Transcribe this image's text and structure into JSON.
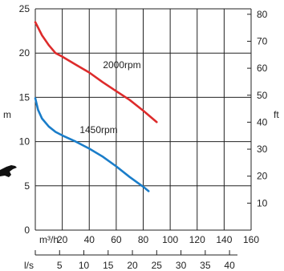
{
  "chart_data": {
    "type": "line",
    "x_unit_primary": "m³/h",
    "x_unit_secondary": "l/s",
    "x_ticks_primary": [
      20,
      40,
      60,
      80,
      100,
      120,
      140,
      160
    ],
    "x_ticks_primary_text": [
      "20",
      "40",
      "60",
      "80",
      "100",
      "120",
      "140",
      "160"
    ],
    "x_ticks_secondary": [
      5,
      10,
      15,
      20,
      25,
      30,
      35,
      40
    ],
    "x_ticks_secondary_text": [
      "5",
      "10",
      "15",
      "20",
      "25",
      "30",
      "35",
      "40"
    ],
    "x_range": [
      0,
      160
    ],
    "ylabel_left": "m",
    "ylabel_right": "ft",
    "y_range_left": [
      0,
      25
    ],
    "y_ticks_left": [
      0,
      5,
      10,
      15,
      20,
      25
    ],
    "y_ticks_left_text": [
      "0",
      "5",
      "10",
      "15",
      "20",
      "25"
    ],
    "y_ticks_right": [
      10,
      20,
      30,
      40,
      50,
      60,
      70,
      80
    ],
    "y_ticks_right_text": [
      "10",
      "20",
      "30",
      "40",
      "50",
      "60",
      "70",
      "80"
    ],
    "grid": true,
    "series": [
      {
        "name": "2000rpm",
        "color": "#dd2b2b",
        "x": [
          0,
          5,
          10,
          15,
          20,
          30,
          40,
          50,
          60,
          70,
          80,
          90
        ],
        "y": [
          23.5,
          22.0,
          20.9,
          20.0,
          19.6,
          18.7,
          17.8,
          16.7,
          15.7,
          14.7,
          13.5,
          12.2
        ]
      },
      {
        "name": "1450rpm",
        "color": "#1a7dc9",
        "x": [
          0,
          2,
          5,
          10,
          15,
          20,
          30,
          40,
          50,
          60,
          70,
          80,
          84
        ],
        "y": [
          14.9,
          13.6,
          12.6,
          11.7,
          11.1,
          10.7,
          10.0,
          9.2,
          8.3,
          7.2,
          6.0,
          4.9,
          4.4
        ]
      }
    ]
  }
}
